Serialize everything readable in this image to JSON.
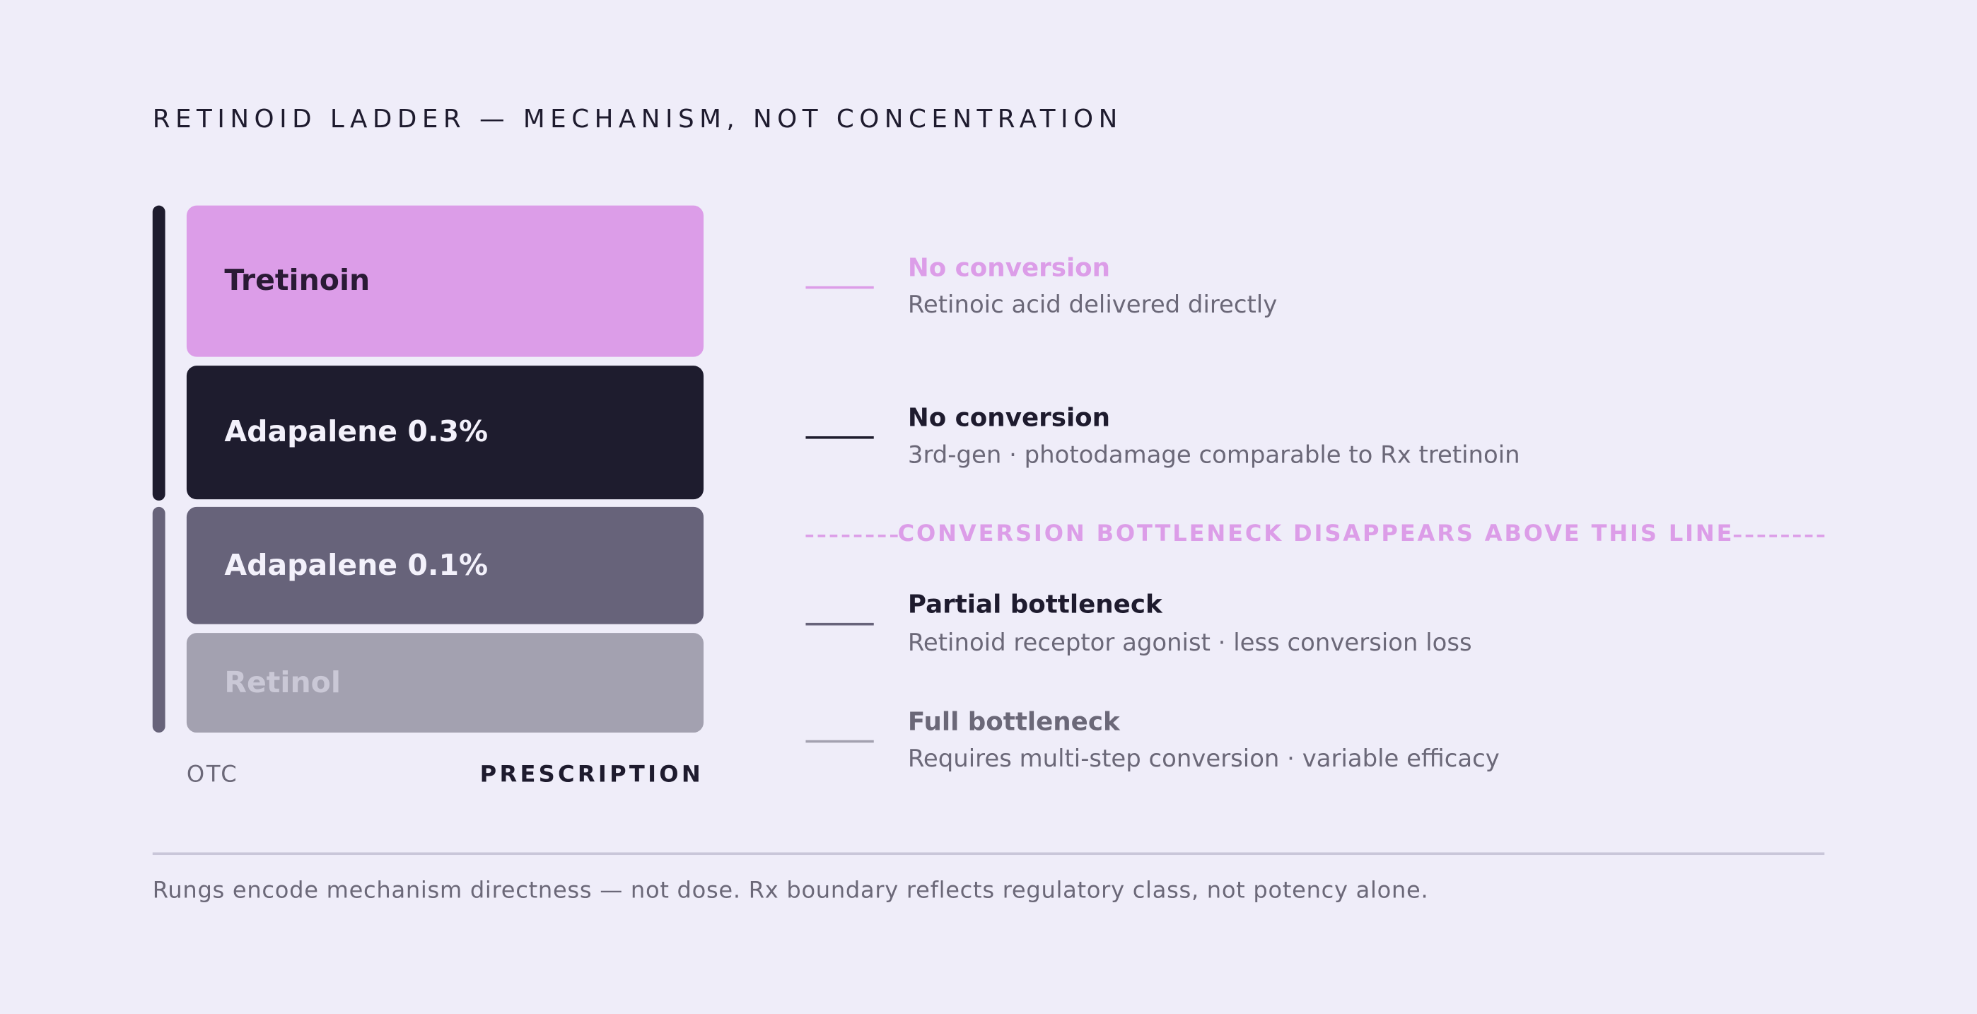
{
  "header": {
    "title": "RETINOID LADDER — MECHANISM, NOT CONCENTRATION"
  },
  "rungs": [
    {
      "label": "Tretinoin"
    },
    {
      "label": "Adapalene 0.3%"
    },
    {
      "label": "Adapalene 0.1%"
    },
    {
      "label": "Retinol"
    }
  ],
  "axis": {
    "left": "OTC",
    "right": "PRESCRIPTION"
  },
  "annotations": [
    {
      "heading": "No conversion",
      "description": "Retinoic acid delivered directly"
    },
    {
      "heading": "No conversion",
      "description": "3rd-gen · photodamage comparable to Rx tretinoin"
    },
    {
      "heading": "Partial bottleneck",
      "description": "Retinoid receptor agonist · less conversion loss"
    },
    {
      "heading": "Full bottleneck",
      "description": "Requires multi-step conversion · variable efficacy"
    }
  ],
  "threshold": {
    "label": "CONVERSION BOTTLENECK DISAPPEARS ABOVE THIS LINE"
  },
  "footnote": "Rungs encode mechanism directness — not dose. Rx boundary reflects regulatory class, not potency alone."
}
